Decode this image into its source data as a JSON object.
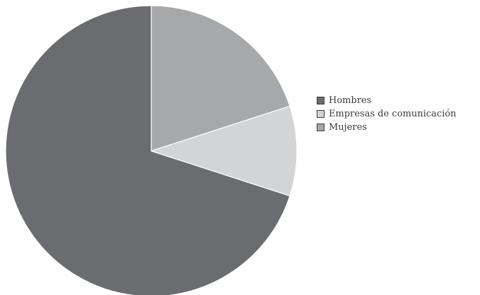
{
  "chart_data": {
    "type": "pie",
    "title": "",
    "start_angle_deg": 0,
    "direction": "clockwise",
    "legend_position": "right",
    "slices": [
      {
        "label": "Mujeres",
        "value": 20,
        "color": "#a7a8aa"
      },
      {
        "label": "Empresas de comunicación",
        "value": 10,
        "color": "#d3d4d6"
      },
      {
        "label": "Hombres",
        "value": 70,
        "color": "#6b6c6f"
      }
    ],
    "legend": [
      {
        "label": "Hombres",
        "color": "#6b6c6f"
      },
      {
        "label": "Empresas de comunicación",
        "color": "#d3d4d6"
      },
      {
        "label": "Mujeres",
        "color": "#a7a8aa"
      }
    ]
  }
}
